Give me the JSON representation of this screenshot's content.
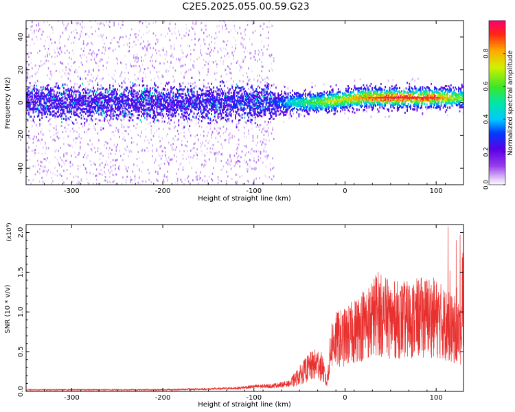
{
  "title": "C2E5.2025.055.00.59.G23",
  "colors": {
    "snr_line": "#e8302e",
    "frame": "#000000"
  },
  "colorbar": {
    "label": "Normalized spectral amplitude",
    "ticks": [
      0.0,
      0.2,
      0.4,
      0.6,
      0.8
    ],
    "tick_labels": [
      "0.0",
      "0.2",
      "0.4",
      "0.6",
      "0.8"
    ]
  },
  "chart_data": [
    {
      "type": "heatmap",
      "title": "C2E5.2025.055.00.59.G23",
      "xlabel": "Height of straight line (km)",
      "ylabel": "Frequency (Hz)",
      "xlim": [
        -350,
        130
      ],
      "ylim": [
        -50,
        50
      ],
      "x_ticks": [
        -300,
        -200,
        -100,
        0,
        100
      ],
      "x_tick_labels": [
        "-300",
        "-200",
        "-100",
        "0",
        "100"
      ],
      "y_ticks": [
        -40,
        -20,
        0,
        20,
        40
      ],
      "y_tick_labels": [
        "-40",
        "-20",
        "0",
        "20",
        "40"
      ],
      "colorbar_label": "Normalized spectral amplitude",
      "colorbar_range": [
        0,
        1
      ],
      "ridge": {
        "x": [
          -350,
          -200,
          -80,
          -60,
          -40,
          -20,
          0,
          20,
          40,
          60,
          80,
          100,
          130
        ],
        "y": [
          0,
          0,
          0,
          0,
          0,
          0.5,
          2,
          3,
          3,
          3,
          3,
          3,
          3
        ],
        "peak_amplitude": [
          0.15,
          0.15,
          0.2,
          0.45,
          0.55,
          0.7,
          0.75,
          0.85,
          0.95,
          0.95,
          0.95,
          0.9,
          0.6
        ]
      }
    },
    {
      "type": "line",
      "xlabel": "Height of straight line (km)",
      "ylabel": "SNR (10 * v/v)",
      "y_multiplier": "(x10⁴)",
      "xlim": [
        -350,
        130
      ],
      "ylim": [
        0,
        2.1
      ],
      "x_ticks": [
        -300,
        -200,
        -100,
        0,
        100
      ],
      "x_tick_labels": [
        "-300",
        "-200",
        "-100",
        "0",
        "100"
      ],
      "y_ticks": [
        0,
        0.5,
        1.0,
        1.5,
        2.0
      ],
      "y_tick_labels": [
        "0.0",
        "0.5",
        "1.0",
        "1.5",
        "2.0"
      ],
      "series": [
        {
          "x": [
            -350,
            -300,
            -250,
            -200,
            -150,
            -120,
            -100,
            -80,
            -60,
            -50,
            -40,
            -30,
            -25,
            -20,
            -15,
            -10,
            0,
            10,
            20,
            30,
            35,
            40,
            50,
            60,
            70,
            80,
            90,
            100,
            110,
            115,
            120,
            125,
            130
          ],
          "y": [
            0.02,
            0.02,
            0.02,
            0.02,
            0.03,
            0.04,
            0.06,
            0.07,
            0.1,
            0.2,
            0.3,
            0.35,
            0.3,
            0.1,
            0.6,
            0.65,
            0.68,
            0.75,
            0.85,
            0.9,
            1.0,
            0.95,
            0.9,
            0.9,
            0.9,
            0.92,
            0.95,
            0.92,
            0.85,
            0.8,
            0.75,
            0.75,
            0.7
          ]
        }
      ]
    }
  ]
}
